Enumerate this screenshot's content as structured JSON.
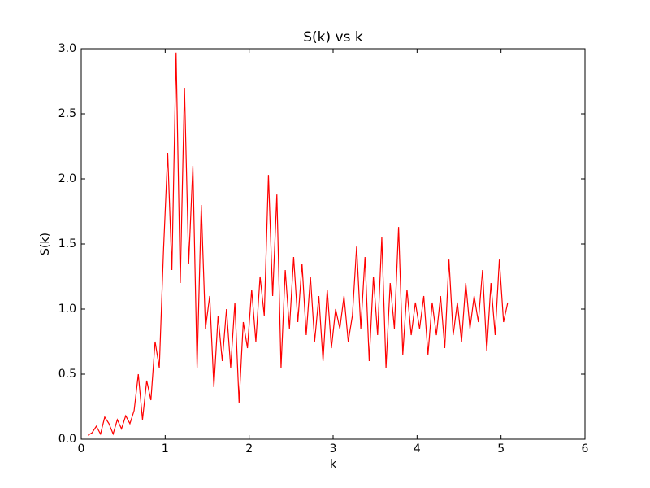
{
  "chart_data": {
    "type": "line",
    "title": "S(k) vs k",
    "x_label": "k",
    "y_label": "S(k)",
    "x": [
      0.08,
      0.13,
      0.18,
      0.23,
      0.28,
      0.33,
      0.38,
      0.43,
      0.48,
      0.53,
      0.58,
      0.63,
      0.68,
      0.73,
      0.78,
      0.83,
      0.88,
      0.93,
      0.98,
      1.03,
      1.08,
      1.13,
      1.18,
      1.23,
      1.28,
      1.33,
      1.38,
      1.43,
      1.48,
      1.53,
      1.58,
      1.63,
      1.68,
      1.73,
      1.78,
      1.83,
      1.88,
      1.93,
      1.98,
      2.03,
      2.08,
      2.13,
      2.18,
      2.23,
      2.28,
      2.33,
      2.38,
      2.43,
      2.48,
      2.53,
      2.58,
      2.63,
      2.68,
      2.73,
      2.78,
      2.83,
      2.88,
      2.93,
      2.98,
      3.03,
      3.08,
      3.13,
      3.18,
      3.23,
      3.28,
      3.33,
      3.38,
      3.43,
      3.48,
      3.53,
      3.58,
      3.63,
      3.68,
      3.73,
      3.78,
      3.83,
      3.88,
      3.93,
      3.98,
      4.03,
      4.08,
      4.13,
      4.18,
      4.23,
      4.28,
      4.33,
      4.38,
      4.43,
      4.48,
      4.53,
      4.58,
      4.63,
      4.68,
      4.73,
      4.78,
      4.83,
      4.88,
      4.93,
      4.98,
      5.03,
      5.08
    ],
    "values": [
      0.03,
      0.05,
      0.1,
      0.04,
      0.17,
      0.12,
      0.04,
      0.15,
      0.08,
      0.18,
      0.12,
      0.22,
      0.5,
      0.15,
      0.45,
      0.3,
      0.75,
      0.55,
      1.45,
      2.2,
      1.3,
      2.97,
      1.2,
      2.7,
      1.35,
      2.1,
      0.55,
      1.8,
      0.85,
      1.1,
      0.4,
      0.95,
      0.6,
      1.0,
      0.55,
      1.05,
      0.28,
      0.9,
      0.7,
      1.15,
      0.75,
      1.25,
      0.95,
      2.03,
      1.1,
      1.88,
      0.55,
      1.3,
      0.85,
      1.4,
      0.9,
      1.35,
      0.8,
      1.25,
      0.75,
      1.1,
      0.6,
      1.15,
      0.7,
      1.0,
      0.85,
      1.1,
      0.75,
      0.95,
      1.48,
      0.85,
      1.4,
      0.6,
      1.25,
      0.8,
      1.55,
      0.55,
      1.2,
      0.85,
      1.63,
      0.65,
      1.15,
      0.8,
      1.05,
      0.85,
      1.1,
      0.65,
      1.05,
      0.8,
      1.1,
      0.7,
      1.38,
      0.8,
      1.05,
      0.75,
      1.2,
      0.85,
      1.1,
      0.9,
      1.3,
      0.68,
      1.2,
      0.8,
      1.38,
      0.9,
      1.05
    ],
    "color": "#ff0000",
    "xlim": [
      0,
      6
    ],
    "xticks": [
      0,
      1,
      2,
      3,
      4,
      5,
      6
    ],
    "ylim": [
      0,
      3
    ],
    "yticks": [
      {
        "value": 0,
        "label": "0.0"
      },
      0.5,
      {
        "value": 1,
        "label": "1.0"
      },
      1.5,
      {
        "value": 2,
        "label": "2.0"
      },
      2.5,
      {
        "value": 3,
        "label": "3.0"
      }
    ]
  }
}
